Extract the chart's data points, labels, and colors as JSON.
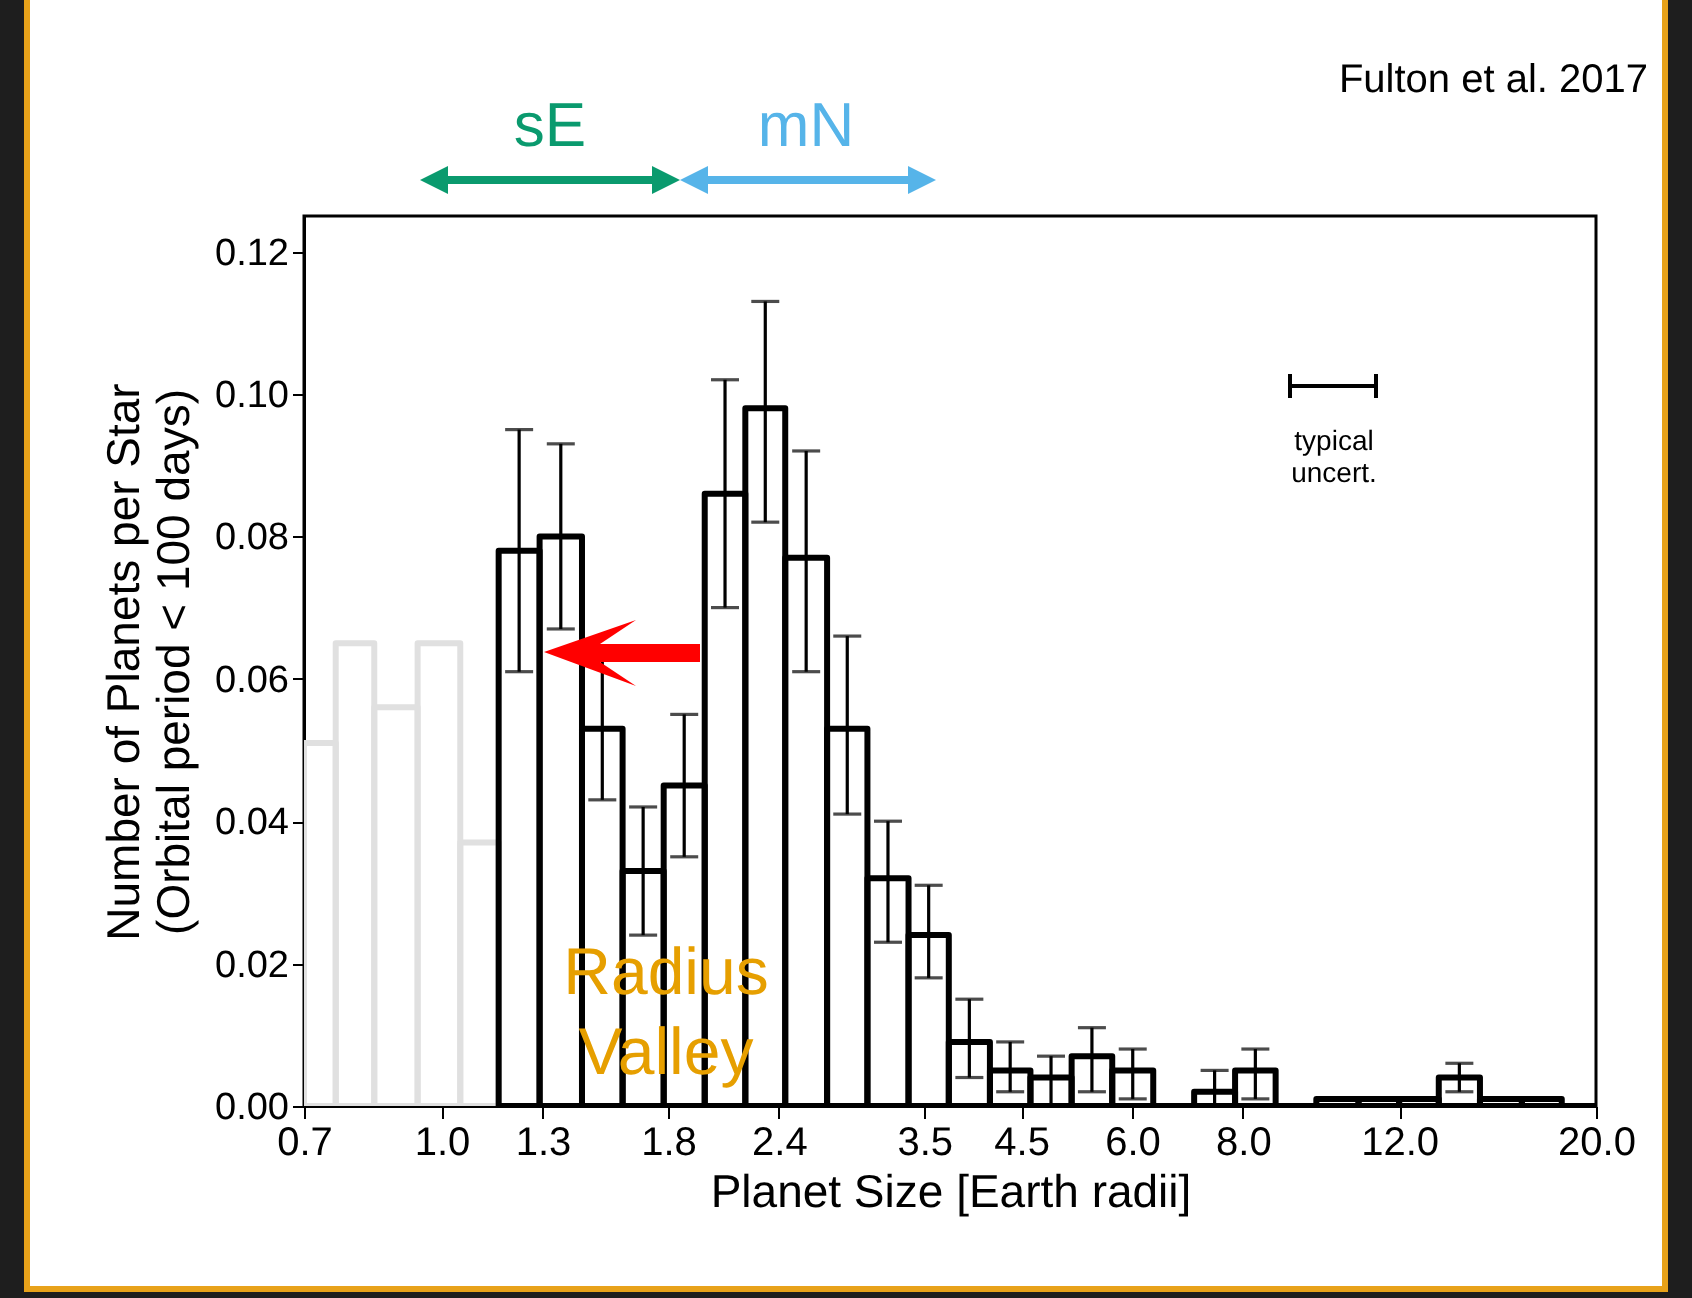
{
  "chart_data": {
    "type": "histogram",
    "xlabel": "Planet Size [Earth radii]",
    "ylabel": "Number of Planets per Star\n(Orbital period < 100 days)",
    "bins": [
      0.7,
      0.76,
      0.84,
      0.94,
      1.05,
      1.16,
      1.29,
      1.44,
      1.6,
      1.78,
      1.98,
      2.2,
      2.44,
      2.72,
      3.02,
      3.36,
      3.73,
      4.15,
      4.61,
      5.13,
      5.7,
      6.34,
      7.05,
      7.84,
      8.71,
      9.68,
      10.8,
      12,
      13.3,
      14.8,
      16.5,
      18.3,
      20
    ],
    "values": [
      0.051,
      0.065,
      0.056,
      0.065,
      0.037,
      0.078,
      0.08,
      0.053,
      0.033,
      0.045,
      0.086,
      0.098,
      0.077,
      0.053,
      0.032,
      0.024,
      0.009,
      0.005,
      0.004,
      0.007,
      0.005,
      0,
      0.002,
      0.005,
      0,
      0.001,
      0.001,
      0.001,
      0.004,
      0.001,
      0.001,
      0
    ],
    "colors": [
      "#e0e0e0",
      "#e0e0e0",
      "#e0e0e0",
      "#e0e0e0",
      "#e0e0e0",
      "#000000",
      "#000000",
      "#000000",
      "#000000",
      "#000000",
      "#000000",
      "#000000",
      "#000000",
      "#000000",
      "#000000",
      "#000000",
      "#000000",
      "#000000",
      "#000000",
      "#000000",
      "#000000",
      "#000000",
      "#000000",
      "#000000",
      "#000000",
      "#000000",
      "#000000",
      "#000000",
      "#000000",
      "#000000",
      "#000000",
      "#000000"
    ],
    "errors": [
      null,
      null,
      null,
      null,
      null,
      [
        0.061,
        0.095
      ],
      [
        0.067,
        0.093
      ],
      [
        0.043,
        0.063
      ],
      [
        0.024,
        0.042
      ],
      [
        0.035,
        0.055
      ],
      [
        0.07,
        0.102
      ],
      [
        0.082,
        0.113
      ],
      [
        0.061,
        0.092
      ],
      [
        0.041,
        0.066
      ],
      [
        0.023,
        0.04
      ],
      [
        0.018,
        0.031
      ],
      [
        0.004,
        0.015
      ],
      [
        0.002,
        0.009
      ],
      [
        0,
        0.007
      ],
      [
        0.002,
        0.011
      ],
      [
        0.001,
        0.008
      ],
      null,
      [
        0,
        0.005
      ],
      [
        0.001,
        0.008
      ],
      null,
      null,
      null,
      null,
      [
        0.002,
        0.006
      ],
      null,
      null,
      null
    ],
    "log": "x",
    "xlim": [
      0.7,
      20
    ],
    "xticks": [
      0.7,
      {
        "value": 1,
        "label": "1.0"
      },
      1.3,
      1.8,
      2.4,
      3.5,
      4.5,
      {
        "value": 6,
        "label": "6.0"
      },
      {
        "value": 8,
        "label": "8.0"
      },
      {
        "value": 12,
        "label": "12.0"
      },
      {
        "value": 20,
        "label": "20.0"
      }
    ],
    "ylim": [
      0,
      0.125
    ],
    "yticks": [
      {
        "value": 0,
        "label": "0.00"
      },
      {
        "value": 0.02,
        "label": "0.02"
      },
      {
        "value": 0.04,
        "label": "0.04"
      },
      {
        "value": 0.06,
        "label": "0.06"
      },
      {
        "value": 0.08,
        "label": "0.08"
      },
      {
        "value": 0.1,
        "label": "0.10"
      },
      {
        "value": 0.12,
        "label": "0.12"
      }
    ],
    "grid": false,
    "legend": false,
    "annotations": [
      "Fulton et al. 2017",
      "sE",
      "mN",
      "Radius\nValley",
      "typical\nuncert."
    ]
  }
}
